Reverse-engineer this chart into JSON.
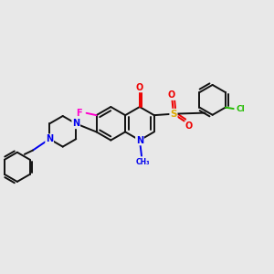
{
  "bg_color": "#e8e8e8",
  "bond_color": "#111111",
  "bond_width": 1.4,
  "atom_colors": {
    "N": "#0000ee",
    "O": "#ee0000",
    "F": "#ff00cc",
    "S": "#ddaa00",
    "Cl": "#22bb00",
    "C": "#111111"
  },
  "figsize": [
    3.0,
    3.0
  ],
  "dpi": 100
}
